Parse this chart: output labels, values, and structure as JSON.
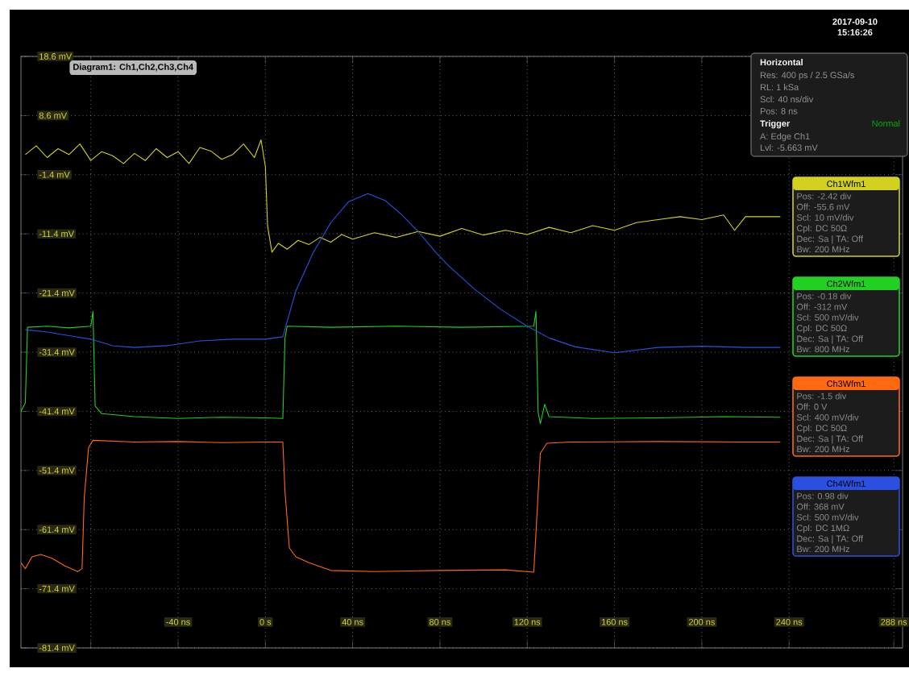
{
  "chart_data": {
    "type": "line",
    "xlim": [
      -112,
      292
    ],
    "ylim": [
      -81.4,
      18.6
    ],
    "xticks": [
      {
        "value": -80,
        "label": null
      },
      {
        "value": -40,
        "label": "-40 ns"
      },
      {
        "value": 0,
        "label": "0 s"
      },
      {
        "value": 40,
        "label": "40 ns"
      },
      {
        "value": 80,
        "label": "80 ns"
      },
      {
        "value": 120,
        "label": "120 ns"
      },
      {
        "value": 160,
        "label": "160 ns"
      },
      {
        "value": 200,
        "label": "200 ns"
      },
      {
        "value": 240,
        "label": "240 ns"
      },
      {
        "value": 288,
        "label": "288 ns"
      }
    ],
    "yticks": [
      {
        "value": 18.6,
        "label": "18.6 mV"
      },
      {
        "value": 8.6,
        "label": "8.6 mV"
      },
      {
        "value": -1.4,
        "label": "-1.4 mV"
      },
      {
        "value": -11.4,
        "label": "-11.4 mV"
      },
      {
        "value": -21.4,
        "label": "-21.4 mV"
      },
      {
        "value": -31.4,
        "label": "-31.4 mV"
      },
      {
        "value": -41.4,
        "label": "-41.4 mV"
      },
      {
        "value": -51.4,
        "label": "-51.4 mV"
      },
      {
        "value": -61.4,
        "label": "-61.4 mV"
      },
      {
        "value": -71.4,
        "label": "-71.4 mV"
      },
      {
        "value": -81.4,
        "label": "-81.4 mV"
      }
    ],
    "grid": true,
    "legend": "right",
    "series": [
      {
        "name": "Ch1Wfm1",
        "color": "#d2d21e",
        "x": [
          -110,
          -105,
          -100,
          -95,
          -90,
          -85,
          -80,
          -75,
          -70,
          -65,
          -60,
          -55,
          -50,
          -45,
          -40,
          -35,
          -30,
          -25,
          -20,
          -15,
          -10,
          -5,
          -2,
          0,
          1,
          3,
          6,
          10,
          15,
          20,
          25,
          30,
          35,
          40,
          50,
          60,
          70,
          80,
          90,
          100,
          110,
          120,
          130,
          140,
          150,
          160,
          170,
          180,
          190,
          200,
          210,
          215,
          220,
          236
        ],
        "values": [
          2,
          3.5,
          1.5,
          3,
          2,
          3.8,
          1,
          2.5,
          1.8,
          0.5,
          2.2,
          1,
          3,
          1.5,
          2.5,
          0.5,
          3.2,
          2.6,
          1.2,
          2,
          3.8,
          1.5,
          4.5,
          0,
          -10,
          -14.5,
          -13,
          -14,
          -12.5,
          -13.2,
          -12,
          -12.8,
          -11.5,
          -12.3,
          -11.2,
          -12,
          -11,
          -11.8,
          -10.5,
          -11.6,
          -10.8,
          -11.5,
          -10.3,
          -11.2,
          -10,
          -10.8,
          -9.5,
          -9,
          -8.5,
          -9,
          -8.2,
          -10.8,
          -8.5,
          -8.5
        ]
      },
      {
        "name": "Ch2Wfm1",
        "color": "#22d022",
        "x": [
          -112,
          -110,
          -109,
          -100,
          -90,
          -80,
          -79,
          -78,
          -75,
          -60,
          -40,
          -20,
          0,
          8,
          9,
          10,
          30,
          60,
          90,
          123,
          124,
          125,
          126,
          128,
          130,
          150,
          180,
          210,
          236
        ],
        "values": [
          -41.4,
          -40,
          -27.2,
          -27,
          -27.3,
          -27,
          -24.5,
          -40.5,
          -41.8,
          -42.3,
          -42.6,
          -42.4,
          -42.5,
          -42.6,
          -29,
          -27,
          -27.2,
          -27,
          -27.2,
          -27,
          -24.5,
          -41.5,
          -43.5,
          -40.2,
          -42.3,
          -42.6,
          -42.5,
          -42.3,
          -42.4
        ]
      },
      {
        "name": "Ch3Wfm1",
        "color": "#ff6a10",
        "x": [
          -112,
          -110,
          -107,
          -103,
          -98,
          -92,
          -86,
          -84,
          -83,
          -81,
          -79,
          -60,
          -40,
          -20,
          0,
          8,
          9,
          11,
          14,
          20,
          30,
          50,
          80,
          110,
          123,
          124,
          126,
          129,
          140,
          180,
          220,
          236
        ],
        "values": [
          -67,
          -68,
          -66,
          -65.6,
          -66.2,
          -67.5,
          -68.5,
          -68,
          -56,
          -47.5,
          -46.3,
          -46.6,
          -46.5,
          -46.7,
          -46.6,
          -46.6,
          -55,
          -64.5,
          -66,
          -67,
          -68.3,
          -68.5,
          -68.3,
          -68.2,
          -68.6,
          -62,
          -48.5,
          -46.8,
          -46.6,
          -46.5,
          -46.6,
          -46.6
        ]
      },
      {
        "name": "Ch4Wfm1",
        "color": "#2b50e0",
        "x": [
          -110,
          -100,
          -90,
          -80,
          -70,
          -60,
          -45,
          -30,
          -15,
          0,
          8,
          14,
          22,
          30,
          38,
          47,
          55,
          62,
          70,
          78,
          84,
          96,
          108,
          120,
          130,
          142,
          160,
          180,
          200,
          220,
          236
        ],
        "values": [
          -27.6,
          -28,
          -28.6,
          -29.2,
          -30.3,
          -30.6,
          -30.3,
          -29.5,
          -29.2,
          -29.2,
          -28.8,
          -21,
          -14.5,
          -9.5,
          -6,
          -4.6,
          -5.8,
          -8,
          -11,
          -14.5,
          -16.8,
          -20.8,
          -24.2,
          -27,
          -29,
          -30.5,
          -31.5,
          -30.6,
          -30.4,
          -30.6,
          -30.6
        ]
      }
    ],
    "annotations": [
      "Diagram1: Ch1,Ch2,Ch3,Ch4",
      "2017-09-10",
      "15:16:26",
      "Horizontal",
      "Res: 400 ps / 2.5 GSa/s",
      "RL: 1 kSa",
      "Scl: 40 ns/div",
      "Pos: 8 ns",
      "Trigger",
      "Normal",
      "A: Edge Ch1",
      "Lvl: -5.663 mV",
      "Pos: -2.42 div",
      "Off: -55.6 mV",
      "Scl: 10 mV/div",
      "Cpl: DC 50Ω",
      "Dec: Sa | TA: Off",
      "Bw: 200 MHz",
      "Pos: -0.18 div",
      "Off: -312 mV",
      "Scl: 500 mV/div",
      "Cpl: DC 50Ω",
      "Dec: Sa | TA: Off",
      "Bw: 800 MHz",
      "Pos: -1.5 div",
      "Off: 0 V",
      "Scl: 400 mV/div",
      "Cpl: DC 50Ω",
      "Dec: Sa | TA: Off",
      "Bw: 200 MHz",
      "Pos: 0.98 div",
      "Off: 368 mV",
      "Scl: 500 mV/div",
      "Cpl: DC 1MΩ",
      "Dec: Sa | TA: Off",
      "Bw: 200 MHz"
    ]
  }
}
